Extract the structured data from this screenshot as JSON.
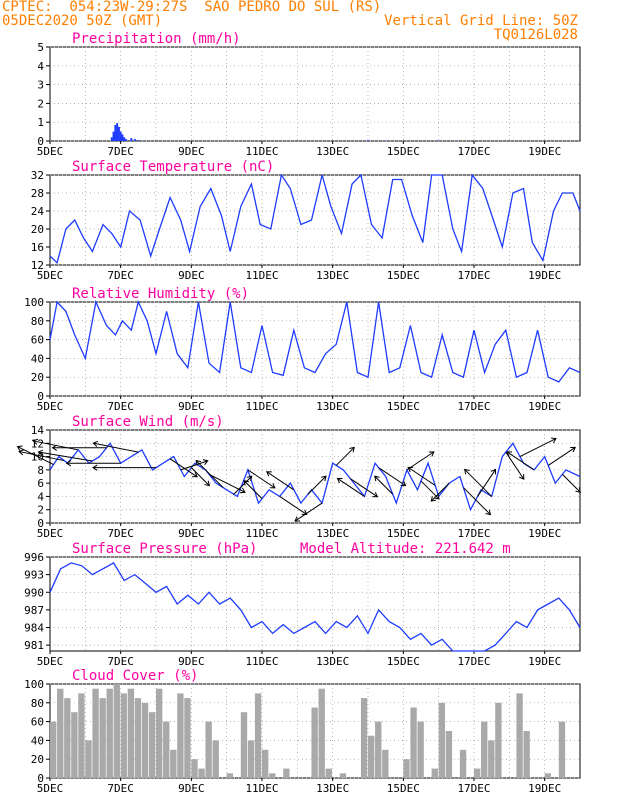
{
  "header": {
    "line1": "CPTEC:  054:23W-29:27S  SAO PEDRO DO SUL (RS)",
    "line2_left": "05DEC2020 50Z (GMT)",
    "line2_right": "Vertical Grid Line: 50Z",
    "line3_right": "TQ0126L028"
  },
  "colors": {
    "header": "#ff7f00",
    "title": "#ff00a0",
    "line": "#1e3cff",
    "bar": "#a9a9a9",
    "grid": "#9a9a9a",
    "arrow": "#000000"
  },
  "chart_data": [
    {
      "type": "bar",
      "title": "Precipitation (mm/h)",
      "x_ticks": [
        "5DEC",
        "7DEC",
        "9DEC",
        "11DEC",
        "13DEC",
        "15DEC",
        "17DEC",
        "19DEC"
      ],
      "ylim": [
        0,
        5
      ],
      "yticks": [
        0,
        1,
        2,
        3,
        4,
        5
      ],
      "x": [
        1.75,
        1.8,
        1.85,
        1.9,
        1.95,
        2.0,
        2.05,
        2.1,
        2.15,
        2.3,
        2.4,
        2.5,
        9.0,
        9.5,
        11.0,
        11.5
      ],
      "values": [
        0.2,
        0.5,
        0.85,
        0.95,
        0.75,
        0.5,
        0.35,
        0.2,
        0.1,
        0.15,
        0.1,
        0.05,
        0.04,
        0.03,
        0.03,
        0.02
      ]
    },
    {
      "type": "line",
      "title": "Surface Temperature (nC)",
      "x_ticks": [
        "5DEC",
        "7DEC",
        "9DEC",
        "11DEC",
        "13DEC",
        "15DEC",
        "17DEC",
        "19DEC"
      ],
      "ylim": [
        12,
        32
      ],
      "yticks": [
        12,
        16,
        20,
        24,
        28,
        32
      ],
      "x": [
        0,
        0.2,
        0.45,
        0.7,
        0.95,
        1.2,
        1.5,
        1.75,
        2.0,
        2.25,
        2.55,
        2.85,
        3.1,
        3.4,
        3.7,
        3.95,
        4.25,
        4.55,
        4.85,
        5.1,
        5.4,
        5.7,
        5.95,
        6.25,
        6.55,
        6.8,
        7.1,
        7.4,
        7.7,
        7.95,
        8.25,
        8.55,
        8.8,
        9.1,
        9.4,
        9.7,
        9.95,
        10.25,
        10.55,
        10.8,
        11.1,
        11.4,
        11.65,
        11.95,
        12.25,
        12.55,
        12.8,
        13.1,
        13.4,
        13.65,
        13.95,
        14.25,
        14.5,
        14.8,
        15.0
      ],
      "values": [
        14,
        12.5,
        20,
        22,
        18,
        15,
        21,
        19,
        16,
        24,
        22,
        14,
        20,
        27,
        22,
        15,
        25,
        29,
        23,
        15,
        25,
        30,
        21,
        20,
        32,
        29,
        21,
        22,
        32,
        25,
        19,
        30,
        32,
        21,
        18,
        31,
        31,
        23,
        17,
        32,
        32,
        20,
        15,
        32,
        29,
        22,
        16,
        28,
        29,
        17,
        13,
        24,
        28,
        28,
        24
      ]
    },
    {
      "type": "line",
      "title": "Relative Humidity (%)",
      "x_ticks": [
        "5DEC",
        "7DEC",
        "9DEC",
        "11DEC",
        "13DEC",
        "15DEC",
        "17DEC",
        "19DEC"
      ],
      "ylim": [
        0,
        100
      ],
      "yticks": [
        0,
        20,
        40,
        60,
        80,
        100
      ],
      "x": [
        0,
        0.2,
        0.45,
        0.7,
        1.0,
        1.3,
        1.6,
        1.85,
        2.05,
        2.3,
        2.5,
        2.75,
        3.0,
        3.3,
        3.6,
        3.9,
        4.2,
        4.5,
        4.8,
        5.1,
        5.4,
        5.7,
        6.0,
        6.3,
        6.6,
        6.9,
        7.2,
        7.5,
        7.8,
        8.1,
        8.4,
        8.7,
        9.0,
        9.3,
        9.6,
        9.9,
        10.2,
        10.5,
        10.8,
        11.1,
        11.4,
        11.7,
        12.0,
        12.3,
        12.6,
        12.9,
        13.2,
        13.5,
        13.8,
        14.1,
        14.4,
        14.7,
        15.0
      ],
      "values": [
        60,
        100,
        90,
        65,
        40,
        100,
        75,
        65,
        80,
        70,
        100,
        80,
        45,
        90,
        45,
        30,
        100,
        35,
        25,
        100,
        30,
        25,
        75,
        25,
        22,
        70,
        30,
        25,
        45,
        55,
        100,
        25,
        20,
        100,
        25,
        30,
        75,
        25,
        20,
        65,
        25,
        20,
        70,
        25,
        55,
        70,
        20,
        25,
        70,
        20,
        15,
        30,
        25
      ]
    },
    {
      "type": "line",
      "title": "Surface Wind (m/s)",
      "x_ticks": [
        "5DEC",
        "7DEC",
        "9DEC",
        "11DEC",
        "13DEC",
        "15DEC",
        "17DEC",
        "19DEC"
      ],
      "ylim": [
        0,
        14
      ],
      "yticks": [
        0,
        2,
        4,
        6,
        8,
        10,
        12,
        14
      ],
      "x": [
        0,
        0.25,
        0.5,
        0.8,
        1.1,
        1.4,
        1.7,
        2.0,
        2.3,
        2.6,
        2.9,
        3.2,
        3.5,
        3.8,
        4.1,
        4.4,
        4.7,
        5.0,
        5.3,
        5.6,
        5.9,
        6.2,
        6.5,
        6.8,
        7.1,
        7.4,
        7.7,
        8.0,
        8.3,
        8.6,
        8.9,
        9.2,
        9.5,
        9.8,
        10.1,
        10.4,
        10.7,
        11.0,
        11.3,
        11.6,
        11.9,
        12.2,
        12.5,
        12.8,
        13.1,
        13.4,
        13.7,
        14.0,
        14.3,
        14.6,
        15.0
      ],
      "values": [
        8,
        10,
        9,
        11,
        9,
        10,
        12,
        9,
        10,
        11,
        8,
        9,
        10,
        7,
        9,
        8,
        6,
        5,
        4,
        8,
        3,
        5,
        4,
        6,
        3,
        5,
        3,
        9,
        8,
        6,
        4,
        9,
        7,
        3,
        8,
        5,
        9,
        4,
        6,
        7,
        2,
        5,
        4,
        10,
        12,
        9,
        8,
        10,
        6,
        8,
        7
      ]
    },
    {
      "type": "line",
      "title": "Surface Pressure (hPa)",
      "annotation": "Model Altitude: 221.642 m",
      "x_ticks": [
        "5DEC",
        "7DEC",
        "9DEC",
        "11DEC",
        "13DEC",
        "15DEC",
        "17DEC",
        "19DEC"
      ],
      "ylim": [
        980,
        996
      ],
      "yticks": [
        981,
        984,
        987,
        990,
        993,
        996
      ],
      "x": [
        0,
        0.3,
        0.6,
        0.9,
        1.2,
        1.5,
        1.8,
        2.1,
        2.4,
        2.7,
        3.0,
        3.3,
        3.6,
        3.9,
        4.2,
        4.5,
        4.8,
        5.1,
        5.4,
        5.7,
        6.0,
        6.3,
        6.6,
        6.9,
        7.2,
        7.5,
        7.8,
        8.1,
        8.4,
        8.7,
        9.0,
        9.3,
        9.6,
        9.9,
        10.2,
        10.5,
        10.8,
        11.1,
        11.4,
        11.7,
        12.0,
        12.3,
        12.6,
        12.9,
        13.2,
        13.5,
        13.8,
        14.1,
        14.4,
        14.7,
        15.0
      ],
      "values": [
        990,
        994,
        995,
        994.5,
        993,
        994,
        995,
        992,
        993,
        991.5,
        990,
        991,
        988,
        989.5,
        988,
        990,
        988,
        989,
        987,
        984,
        985,
        983,
        984.5,
        983,
        984,
        985,
        983,
        985,
        984,
        986,
        983,
        987,
        985,
        984,
        982,
        983,
        981,
        982,
        980,
        979,
        980,
        979,
        981,
        983,
        985,
        984,
        987,
        988,
        989,
        987,
        984
      ]
    },
    {
      "type": "area",
      "title": "Cloud Cover (%)",
      "x_ticks": [
        "5DEC",
        "7DEC",
        "9DEC",
        "11DEC",
        "13DEC",
        "15DEC",
        "17DEC",
        "19DEC"
      ],
      "ylim": [
        0,
        100
      ],
      "yticks": [
        0,
        20,
        40,
        60,
        80,
        100
      ],
      "x": [
        0,
        0.2,
        0.4,
        0.6,
        0.8,
        1.0,
        1.2,
        1.4,
        1.6,
        1.8,
        2.0,
        2.2,
        2.4,
        2.6,
        2.8,
        3.0,
        3.2,
        3.4,
        3.6,
        3.8,
        4.0,
        4.2,
        4.4,
        4.6,
        4.8,
        5.0,
        5.2,
        5.4,
        5.6,
        5.8,
        6.0,
        6.2,
        6.4,
        6.6,
        6.8,
        7.0,
        7.2,
        7.4,
        7.6,
        7.8,
        8.0,
        8.2,
        8.4,
        8.6,
        8.8,
        9.0,
        9.2,
        9.4,
        9.6,
        9.8,
        10.0,
        10.2,
        10.4,
        10.6,
        10.8,
        11.0,
        11.2,
        11.4,
        11.6,
        11.8,
        12.0,
        12.2,
        12.4,
        12.6,
        12.8,
        13.0,
        13.2,
        13.4,
        13.6,
        13.8,
        14.0,
        14.2,
        14.4,
        14.6,
        14.8,
        15.0
      ],
      "values": [
        60,
        95,
        85,
        70,
        90,
        40,
        95,
        85,
        95,
        100,
        90,
        95,
        85,
        80,
        70,
        95,
        60,
        30,
        90,
        85,
        20,
        10,
        60,
        40,
        0,
        5,
        0,
        70,
        40,
        90,
        30,
        5,
        0,
        10,
        0,
        0,
        0,
        75,
        95,
        10,
        0,
        5,
        0,
        0,
        85,
        45,
        60,
        30,
        0,
        0,
        20,
        75,
        60,
        0,
        10,
        80,
        50,
        0,
        30,
        0,
        10,
        60,
        40,
        80,
        0,
        0,
        90,
        50,
        0,
        0,
        5,
        0,
        60,
        0,
        0,
        0
      ]
    }
  ],
  "wind_arrows": {
    "x": [
      0.1,
      0.4,
      0.8,
      1.2,
      1.6,
      2.0,
      2.5,
      3.0,
      3.4,
      3.7,
      4.0,
      4.5,
      4.9,
      5.2,
      5.6,
      6.0,
      6.5,
      6.9,
      7.3,
      7.7,
      8.1,
      8.5,
      8.9,
      9.3,
      9.7,
      10.1,
      10.5,
      10.9,
      11.3,
      11.7,
      12.1,
      12.5,
      12.9,
      13.3,
      13.7,
      14.1,
      14.5
    ],
    "u": [
      -4,
      -5,
      -5,
      -6,
      -6,
      -6,
      -5,
      -7,
      3,
      3,
      2,
      4,
      -3,
      2,
      3,
      -2,
      3,
      -3,
      2,
      -3,
      2,
      3,
      -3,
      3,
      -2,
      3,
      2,
      -3,
      -2,
      3,
      2,
      -3,
      2,
      4,
      -3,
      3,
      2
    ],
    "v": [
      2,
      1,
      1,
      1,
      0,
      0,
      1,
      0,
      -2,
      1,
      -2,
      -2,
      3,
      2,
      -2,
      2,
      -2,
      2,
      2,
      -2,
      2,
      -2,
      2,
      -2,
      2,
      2,
      -2,
      2,
      -2,
      -3,
      3,
      3,
      -3,
      2,
      2,
      2,
      -2
    ]
  }
}
